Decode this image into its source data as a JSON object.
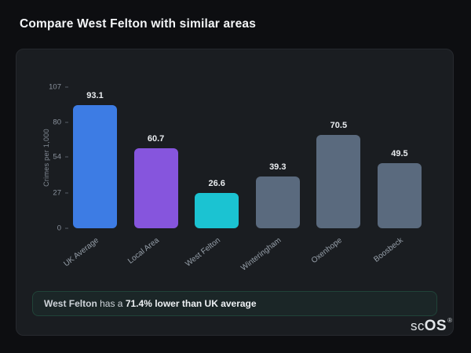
{
  "chart_data": {
    "type": "bar",
    "title": "Compare West Felton with similar areas",
    "categories": [
      "UK Average",
      "Local Area",
      "West Felton",
      "Winteringham",
      "Oxenhope",
      "Boosbeck"
    ],
    "values": [
      93.1,
      60.7,
      26.6,
      39.3,
      70.5,
      49.5
    ],
    "bar_colors": [
      "#3d7ce4",
      "#8655dd",
      "#1bc3d2",
      "#5a6a7e",
      "#5a6a7e",
      "#5a6a7e"
    ],
    "xlabel": "",
    "ylabel": "Crimes per 1,000",
    "yticks": [
      0,
      27,
      54,
      80,
      107
    ],
    "ylim": [
      0,
      107
    ],
    "grid": false,
    "legend": "none",
    "value_decimals": 1
  },
  "note": {
    "area_name": "West Felton",
    "middle_text": " has a ",
    "highlight": "71.4% lower than UK average",
    "accent_color": "#2fd08c"
  },
  "footer": {
    "logo_text_1": "sc",
    "logo_text_2": "OS",
    "registered_mark": "®"
  }
}
